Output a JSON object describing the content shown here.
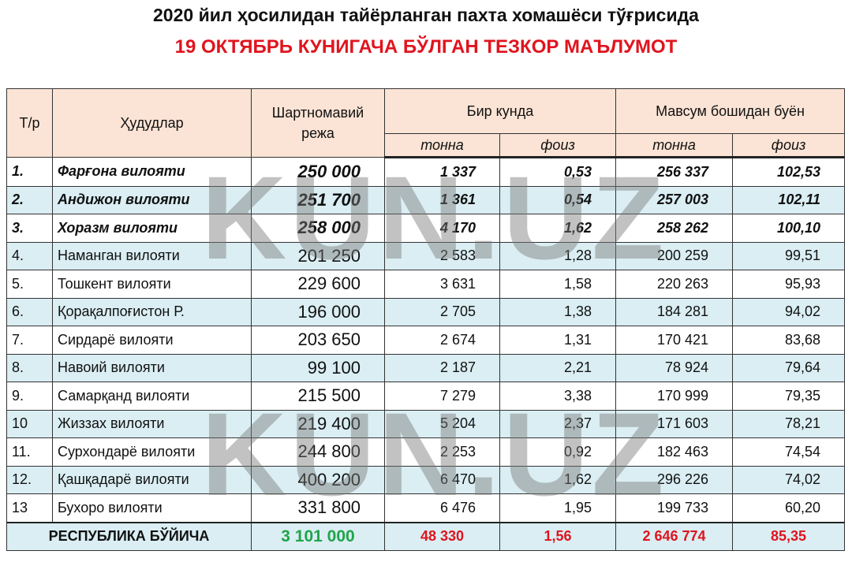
{
  "header": {
    "title": "2020 йил ҳосилидан тайёрланган пахта хомашёси тўғрисида",
    "subtitle": "19 ОКТЯБРЬ КУНИГАЧА БЎЛГАН ТЕЗКОР МАЪЛУМОТ"
  },
  "watermark": "KUN.UZ",
  "table": {
    "columns": [
      "Т/р",
      "Ҳудудлар",
      "Шартномавий режа",
      "Бир кунда",
      "Мавсум бошидан буён"
    ],
    "subcolumns": [
      "тонна",
      "фоиз",
      "тонна",
      "фоиз"
    ],
    "rows": [
      [
        "1.",
        "Фарғона вилояти",
        "250 000",
        "1 337",
        "0,53",
        "256 337",
        "102,53"
      ],
      [
        "2.",
        "Андижон вилояти",
        "251 700",
        "1 361",
        "0,54",
        "257 003",
        "102,11"
      ],
      [
        "3.",
        "Хоразм вилояти",
        "258 000",
        "4 170",
        "1,62",
        "258 262",
        "100,10"
      ],
      [
        "4.",
        "Наманган вилояти",
        "201 250",
        "2 583",
        "1,28",
        "200 259",
        "99,51"
      ],
      [
        "5.",
        "Тошкент вилояти",
        "229 600",
        "3 631",
        "1,58",
        "220 263",
        "95,93"
      ],
      [
        "6.",
        "Қорақалпоғистон Р.",
        "196 000",
        "2 705",
        "1,38",
        "184 281",
        "94,02"
      ],
      [
        "7.",
        "Сирдарё вилояти",
        "203 650",
        "2 674",
        "1,31",
        "170 421",
        "83,68"
      ],
      [
        "8.",
        "Навоий вилояти",
        "99 100",
        "2 187",
        "2,21",
        "78 924",
        "79,64"
      ],
      [
        "9.",
        "Самарқанд вилояти",
        "215 500",
        "7 279",
        "3,38",
        "170 999",
        "79,35"
      ],
      [
        "10",
        "Жиззах вилояти",
        "219 400",
        "5 204",
        "2,37",
        "171 603",
        "78,21"
      ],
      [
        "11.",
        "Сурхондарё вилояти",
        "244 800",
        "2 253",
        "0,92",
        "182 463",
        "74,54"
      ],
      [
        "12.",
        "Қашқадарё вилояти",
        "400 200",
        "6 470",
        "1,62",
        "296 226",
        "74,02"
      ],
      [
        "13",
        "Бухоро вилояти",
        "331 800",
        "6 476",
        "1,95",
        "199 733",
        "60,20"
      ]
    ],
    "total": [
      "РЕСПУБЛИКА БЎЙИЧА",
      "3 101 000",
      "48 330",
      "1,56",
      "2 646 774",
      "85,35"
    ]
  }
}
